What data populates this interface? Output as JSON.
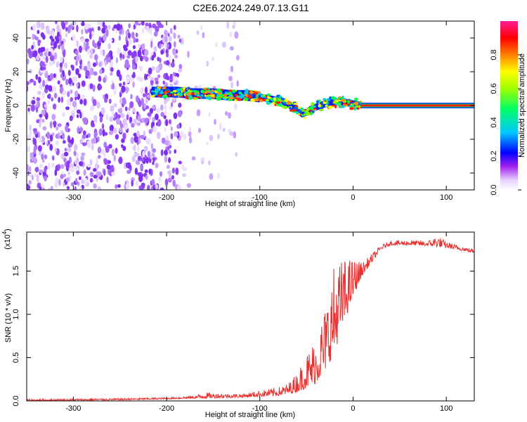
{
  "title": "C2E6.2024.249.07.13.G11",
  "chart_data": [
    {
      "type": "heatmap",
      "xlabel": "Height of straight line (km)",
      "ylabel": "Frequency (Hz)",
      "xlim": [
        -350,
        130
      ],
      "ylim": [
        -50,
        50
      ],
      "x_ticks": [
        -300,
        -200,
        -100,
        0,
        100
      ],
      "x_tick_labels": [
        "-300",
        "-200",
        "-100",
        "0",
        "100"
      ],
      "y_ticks": [
        -40,
        -20,
        0,
        20,
        40
      ],
      "y_tick_labels": [
        "-40",
        "-20",
        "0",
        "20",
        "40"
      ],
      "colorbar": {
        "label": "Normalized spectral amplitude",
        "range": [
          0,
          1
        ],
        "ticks": [
          0,
          0.2,
          0.4,
          0.6,
          0.8
        ],
        "tick_labels": [
          "0.0",
          "0.2",
          "0.4",
          "0.6",
          "0.8"
        ],
        "colors": [
          "#ffffff",
          "#a020f0",
          "#0000ff",
          "#00c8ff",
          "#00ff00",
          "#ffff00",
          "#ff8000",
          "#ff0000",
          "#ff1e96"
        ]
      },
      "ridge": {
        "x": [
          -215,
          -190,
          -170,
          -150,
          -130,
          -115,
          -100,
          -90,
          -80,
          -70,
          -60,
          -55,
          -50,
          -45,
          -40,
          -30,
          -20,
          -10,
          0,
          10,
          130
        ],
        "y": [
          8,
          8,
          7,
          7,
          6,
          6,
          5,
          4,
          3,
          1,
          -2,
          -5,
          -4,
          -2,
          -1,
          1,
          2,
          2,
          1,
          0,
          0
        ]
      },
      "noise_region": {
        "x_start": -350,
        "x_end": -185,
        "dense_end": -185,
        "sparse_end": -120
      }
    },
    {
      "type": "line",
      "xlabel": "Height of straight line (km)",
      "ylabel": "SNR (10 * v/v)",
      "scale_label": "(x10",
      "scale_exponent": "4",
      "xlim": [
        -350,
        130
      ],
      "ylim": [
        0,
        1.95
      ],
      "x_ticks": [
        -300,
        -200,
        -100,
        0,
        100
      ],
      "x_tick_labels": [
        "-300",
        "-200",
        "-100",
        "0",
        "100"
      ],
      "y_ticks": [
        0,
        0.5,
        1.0,
        1.5
      ],
      "y_tick_labels": [
        "0.0",
        "0.5",
        "1.0",
        "1.5"
      ],
      "color": "#e8302e",
      "envelope": {
        "x": [
          -350,
          -250,
          -200,
          -170,
          -160,
          -120,
          -100,
          -80,
          -70,
          -60,
          -50,
          -40,
          -30,
          -20,
          -10,
          0,
          10,
          20,
          30,
          40,
          60,
          80,
          90,
          100,
          120,
          130
        ],
        "low": [
          0.0,
          0.01,
          0.02,
          0.03,
          0.03,
          0.04,
          0.05,
          0.06,
          0.08,
          0.1,
          0.15,
          0.2,
          0.35,
          0.55,
          0.9,
          1.2,
          1.45,
          1.6,
          1.75,
          1.8,
          1.8,
          1.79,
          1.78,
          1.77,
          1.73,
          1.71
        ],
        "high": [
          0.02,
          0.03,
          0.04,
          0.06,
          0.1,
          0.08,
          0.12,
          0.16,
          0.2,
          0.33,
          0.55,
          0.75,
          1.1,
          1.6,
          1.65,
          1.65,
          1.6,
          1.7,
          1.8,
          1.85,
          1.86,
          1.85,
          1.92,
          1.84,
          1.78,
          1.75
        ]
      }
    }
  ]
}
